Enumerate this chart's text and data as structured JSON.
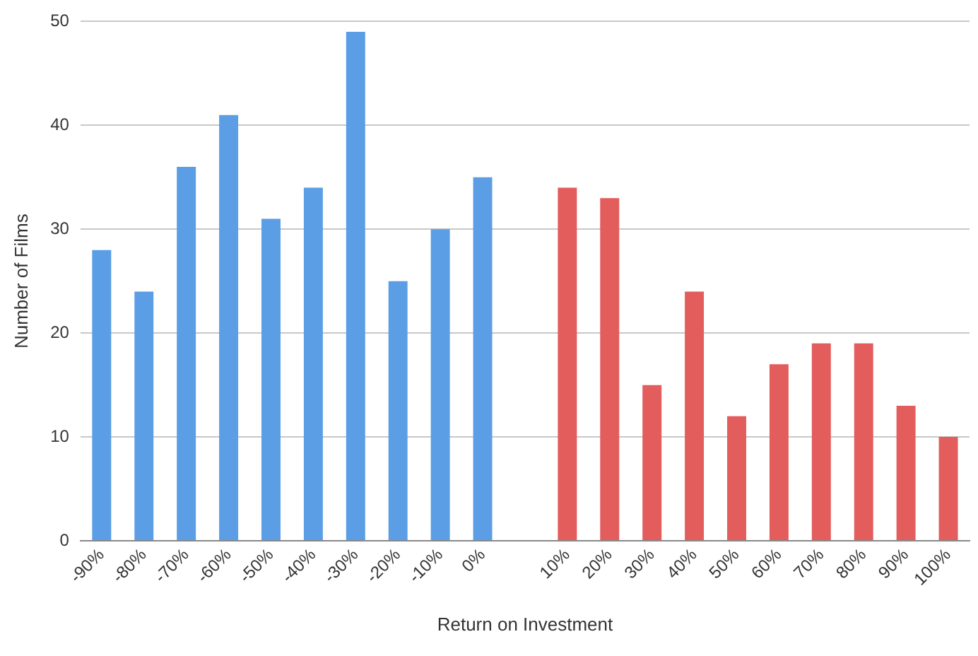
{
  "chart_data": {
    "type": "bar",
    "xlabel": "Return on Investment",
    "ylabel": "Number of Films",
    "categories": [
      "-90%",
      "-80%",
      "-70%",
      "-60%",
      "-50%",
      "-40%",
      "-30%",
      "-20%",
      "-10%",
      "0%",
      null,
      "10%",
      "20%",
      "30%",
      "40%",
      "50%",
      "60%",
      "70%",
      "80%",
      "90%",
      "100%"
    ],
    "values": [
      28,
      24,
      36,
      41,
      31,
      34,
      49,
      25,
      30,
      35,
      null,
      34,
      33,
      15,
      24,
      12,
      17,
      19,
      19,
      13,
      10
    ],
    "colors": [
      "#5b9ee6",
      "#5b9ee6",
      "#5b9ee6",
      "#5b9ee6",
      "#5b9ee6",
      "#5b9ee6",
      "#5b9ee6",
      "#5b9ee6",
      "#5b9ee6",
      "#5b9ee6",
      "#5b9ee6",
      "#e35d5d",
      "#e35d5d",
      "#e35d5d",
      "#e35d5d",
      "#e35d5d",
      "#e35d5d",
      "#e35d5d",
      "#e35d5d",
      "#e35d5d",
      "#e35d5d"
    ],
    "ylim": [
      0,
      50
    ],
    "yticks": [
      0,
      10,
      20,
      30,
      40,
      50
    ],
    "grid": "y",
    "legend": false
  }
}
